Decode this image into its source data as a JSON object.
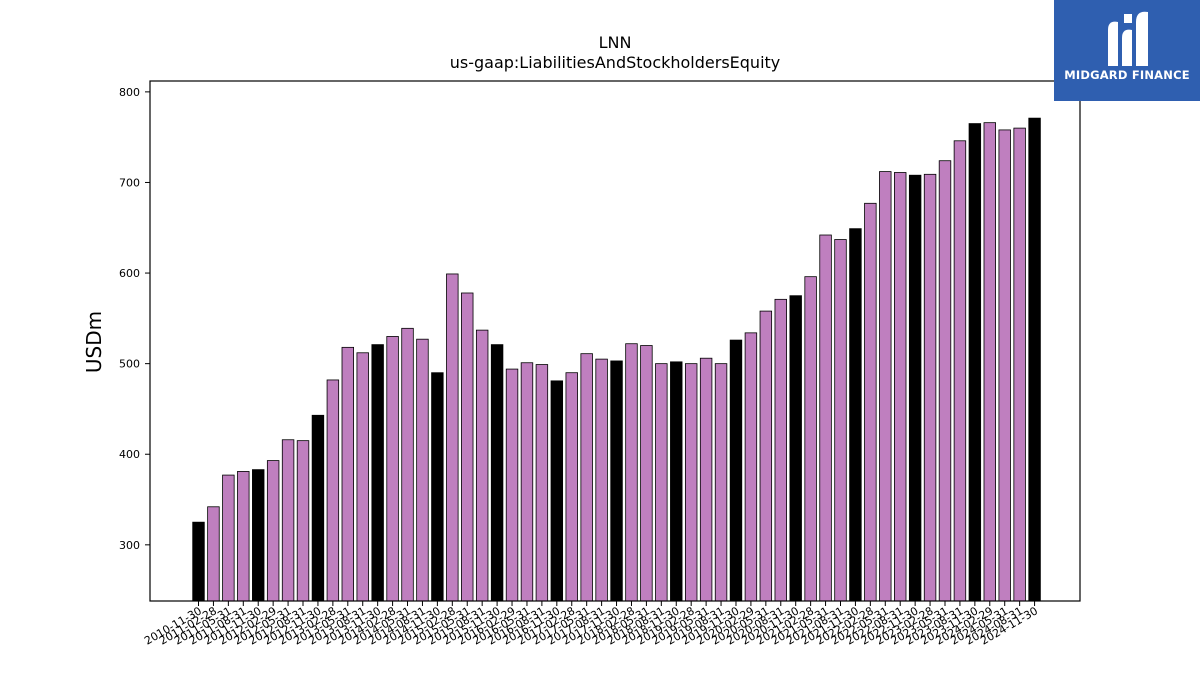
{
  "brand": {
    "name": "MIDGARD FINANCE",
    "icon": "midgard-logo-icon",
    "background": "#2f5fb0"
  },
  "colors": {
    "highlight": "#000000",
    "regular": "#bf7fbf",
    "edge": "#000000"
  },
  "chart_data": {
    "type": "bar",
    "title": "LNN",
    "subtitle": "us-gaap:LiabilitiesAndStockholdersEquity",
    "ylabel": "USDm",
    "ylim": [
      238,
      812
    ],
    "yticks": [
      300,
      400,
      500,
      600,
      700,
      800
    ],
    "categories": [
      "2010-11-30",
      "2011-02-28",
      "2011-05-31",
      "2011-08-31",
      "2011-11-30",
      "2012-02-29",
      "2012-05-31",
      "2012-08-31",
      "2012-11-30",
      "2013-02-28",
      "2013-05-31",
      "2013-08-31",
      "2013-11-30",
      "2014-02-28",
      "2014-05-31",
      "2014-08-31",
      "2014-11-30",
      "2015-02-28",
      "2015-05-31",
      "2015-08-31",
      "2015-11-30",
      "2016-02-29",
      "2016-05-31",
      "2016-08-31",
      "2016-11-30",
      "2017-02-28",
      "2017-05-31",
      "2017-08-31",
      "2017-11-30",
      "2018-02-28",
      "2018-05-31",
      "2018-08-31",
      "2018-11-30",
      "2019-02-28",
      "2019-05-31",
      "2019-08-31",
      "2019-11-30",
      "2020-02-29",
      "2020-05-31",
      "2020-08-31",
      "2020-11-30",
      "2021-02-28",
      "2021-05-31",
      "2021-08-31",
      "2021-11-30",
      "2022-02-28",
      "2022-05-31",
      "2022-08-31",
      "2022-11-30",
      "2023-02-28",
      "2023-05-31",
      "2023-08-31",
      "2023-11-30",
      "2024-02-29",
      "2024-05-31",
      "2024-08-31",
      "2024-11-30"
    ],
    "values": [
      325,
      342,
      377,
      381,
      383,
      393,
      416,
      415,
      443,
      482,
      518,
      512,
      521,
      530,
      539,
      527,
      490,
      599,
      578,
      537,
      521,
      494,
      501,
      499,
      481,
      490,
      511,
      505,
      503,
      522,
      520,
      500,
      502,
      500,
      506,
      500,
      526,
      534,
      558,
      571,
      575,
      596,
      642,
      637,
      649,
      677,
      712,
      711,
      708,
      709,
      724,
      746,
      765,
      766,
      758,
      760,
      771
    ],
    "highlight_categories": [
      "2010-11-30",
      "2011-11-30",
      "2012-11-30",
      "2013-11-30",
      "2014-11-30",
      "2015-11-30",
      "2016-11-30",
      "2017-11-30",
      "2018-11-30",
      "2019-11-30",
      "2020-11-30",
      "2021-11-30",
      "2022-11-30",
      "2023-11-30",
      "2024-11-30"
    ],
    "grid": false,
    "legend": "none"
  }
}
